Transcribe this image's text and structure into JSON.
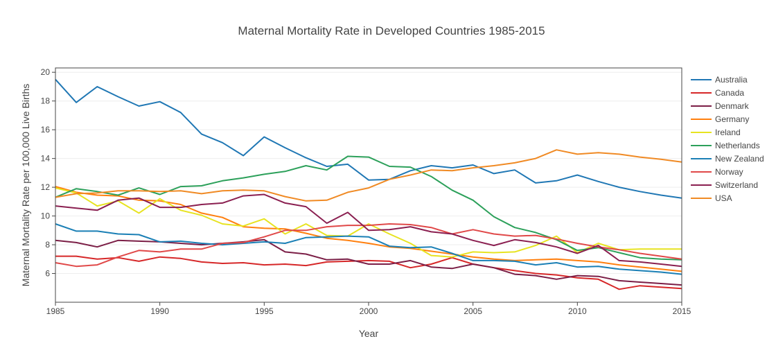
{
  "chart_data": {
    "type": "line",
    "title": "Maternal Mortality Rate in Developed Countries 1985-2015",
    "xlabel": "Year",
    "ylabel": "Maternal Mortality Rate per 100,000 Live Births",
    "xlim": [
      1985,
      2015
    ],
    "ylim": [
      4.0,
      20.3
    ],
    "xticks": [
      1985,
      1990,
      1995,
      2000,
      2005,
      2010,
      2015
    ],
    "yticks": [
      6,
      8,
      10,
      12,
      14,
      16,
      18,
      20
    ],
    "legend_position": "right",
    "x": [
      1985,
      1986,
      1987,
      1988,
      1989,
      1990,
      1991,
      1992,
      1993,
      1994,
      1995,
      1996,
      1997,
      1998,
      1999,
      2000,
      2001,
      2002,
      2003,
      2004,
      2005,
      2006,
      2007,
      2008,
      2009,
      2010,
      2011,
      2012,
      2013,
      2014,
      2015
    ],
    "series": [
      {
        "name": "Australia",
        "color": "#1f77b4",
        "values": [
          19.5,
          17.9,
          19.0,
          18.3,
          17.65,
          17.95,
          17.2,
          15.7,
          15.1,
          14.2,
          15.5,
          14.75,
          14.05,
          13.45,
          13.6,
          12.5,
          12.55,
          13.15,
          13.5,
          13.35,
          13.55,
          12.95,
          13.2,
          12.3,
          12.45,
          12.85,
          12.4,
          12.0,
          11.7,
          11.45,
          11.25
        ]
      },
      {
        "name": "Canada",
        "color": "#d62728",
        "values": [
          7.2,
          7.2,
          7.0,
          7.1,
          6.85,
          7.15,
          7.05,
          6.8,
          6.7,
          6.75,
          6.6,
          6.65,
          6.55,
          6.8,
          6.85,
          6.9,
          6.85,
          6.4,
          6.65,
          7.1,
          6.65,
          6.4,
          6.2,
          6.0,
          5.9,
          5.7,
          5.6,
          4.9,
          5.15,
          5.05,
          4.95
        ]
      },
      {
        "name": "Denmark",
        "color": "#7b1e46",
        "values": [
          8.3,
          8.15,
          7.85,
          8.3,
          8.25,
          8.2,
          8.1,
          8.0,
          8.1,
          8.2,
          8.35,
          7.5,
          7.35,
          6.95,
          7.0,
          6.65,
          6.65,
          6.9,
          6.45,
          6.35,
          6.65,
          6.4,
          5.95,
          5.85,
          5.6,
          5.85,
          5.8,
          5.5,
          5.4,
          5.3,
          5.2
        ]
      },
      {
        "name": "Germany",
        "color": "#ff7f0e",
        "values": [
          12.05,
          11.65,
          11.45,
          11.4,
          11.1,
          11.05,
          10.8,
          10.2,
          9.9,
          9.25,
          9.15,
          9.1,
          8.8,
          8.45,
          8.3,
          8.1,
          7.85,
          7.75,
          7.55,
          7.35,
          7.15,
          7.0,
          6.9,
          6.95,
          7.0,
          6.9,
          6.8,
          6.6,
          6.45,
          6.3,
          6.15
        ]
      },
      {
        "name": "Ireland",
        "color": "#e7e320",
        "values": [
          11.95,
          11.6,
          10.7,
          11.05,
          10.2,
          11.2,
          10.4,
          10.05,
          9.45,
          9.3,
          9.8,
          8.75,
          9.45,
          8.65,
          8.6,
          9.45,
          8.75,
          8.1,
          7.25,
          7.15,
          7.5,
          7.45,
          7.5,
          7.95,
          8.6,
          7.45,
          8.1,
          7.65,
          7.7,
          7.7,
          7.7
        ]
      },
      {
        "name": "Netherlands",
        "color": "#2ca05a",
        "values": [
          11.3,
          11.9,
          11.7,
          11.45,
          11.95,
          11.5,
          12.05,
          12.1,
          12.45,
          12.65,
          12.9,
          13.1,
          13.5,
          13.2,
          14.15,
          14.1,
          13.45,
          13.4,
          12.75,
          11.8,
          11.1,
          9.95,
          9.2,
          8.85,
          8.35,
          7.6,
          7.8,
          7.45,
          7.1,
          7.0,
          6.95
        ]
      },
      {
        "name": "New Zealand",
        "color": "#1a7fb5",
        "values": [
          9.45,
          8.95,
          8.95,
          8.75,
          8.7,
          8.2,
          8.25,
          8.1,
          8.0,
          8.1,
          8.2,
          8.1,
          8.5,
          8.55,
          8.6,
          8.55,
          7.9,
          7.8,
          7.85,
          7.4,
          6.9,
          6.9,
          6.85,
          6.6,
          6.75,
          6.45,
          6.5,
          6.3,
          6.2,
          6.1,
          5.95
        ]
      },
      {
        "name": "Norway",
        "color": "#e04848",
        "values": [
          6.75,
          6.5,
          6.6,
          7.15,
          7.6,
          7.5,
          7.7,
          7.7,
          8.1,
          8.15,
          8.55,
          9.0,
          9.0,
          9.25,
          9.35,
          9.35,
          9.45,
          9.4,
          9.2,
          8.75,
          9.05,
          8.75,
          8.6,
          8.65,
          8.4,
          8.1,
          7.85,
          7.65,
          7.4,
          7.2,
          7.0
        ]
      },
      {
        "name": "Switzerland",
        "color": "#8a1f50",
        "values": [
          10.7,
          10.55,
          10.4,
          11.1,
          11.25,
          10.6,
          10.6,
          10.8,
          10.9,
          11.4,
          11.5,
          10.9,
          10.65,
          9.5,
          10.25,
          9.0,
          9.05,
          9.25,
          8.9,
          8.75,
          8.3,
          7.95,
          8.35,
          8.15,
          7.85,
          7.4,
          7.95,
          6.9,
          6.8,
          6.65,
          6.5
        ]
      },
      {
        "name": "USA",
        "color": "#f08a24",
        "values": [
          11.3,
          11.55,
          11.6,
          11.75,
          11.75,
          11.7,
          11.75,
          11.55,
          11.75,
          11.8,
          11.75,
          11.35,
          11.05,
          11.1,
          11.65,
          11.95,
          12.55,
          12.85,
          13.2,
          13.15,
          13.35,
          13.5,
          13.7,
          14.0,
          14.6,
          14.3,
          14.4,
          14.3,
          14.1,
          13.95,
          13.75
        ]
      }
    ]
  }
}
